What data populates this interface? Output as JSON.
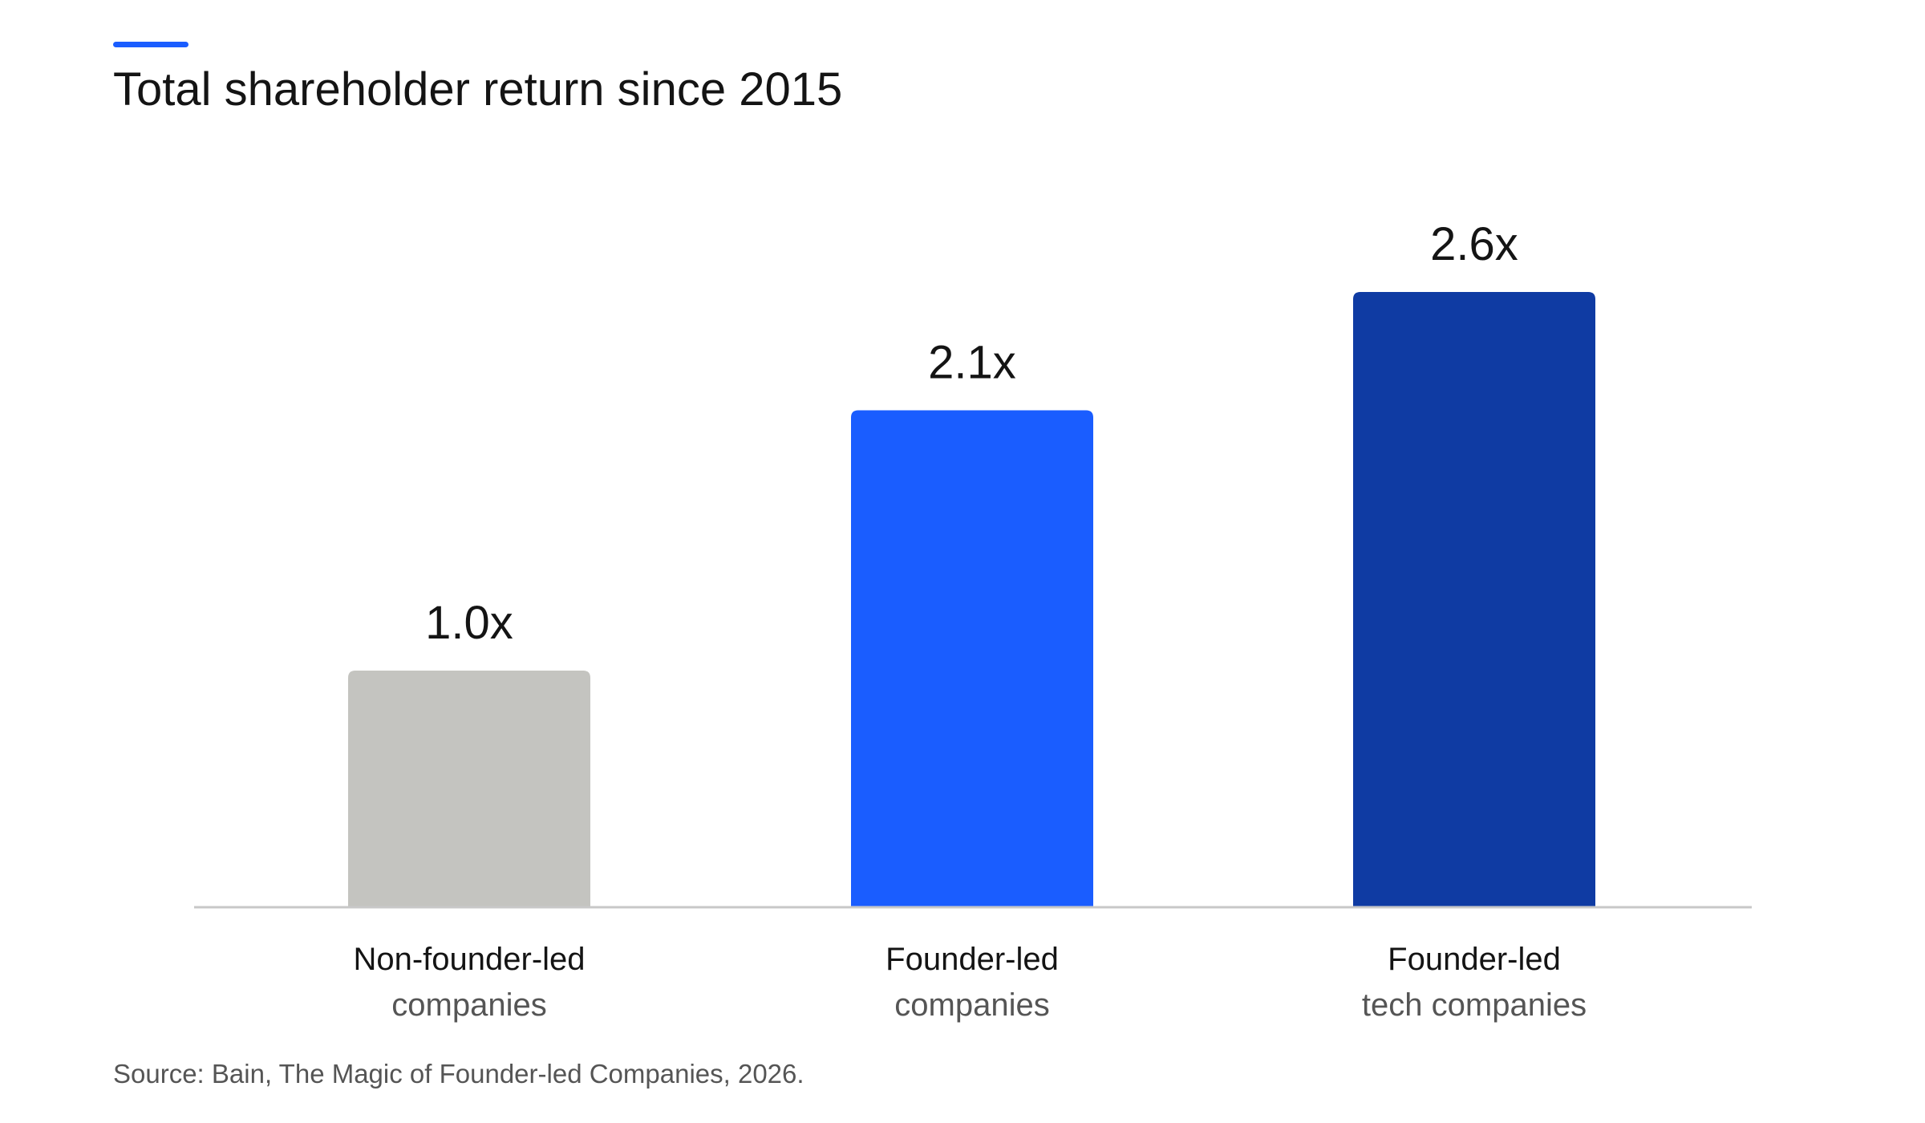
{
  "chart_data": {
    "type": "bar",
    "title": "Total shareholder return since 2015",
    "categories": [
      {
        "primary": "Non-founder-led",
        "secondary": "companies"
      },
      {
        "primary": "Founder-led",
        "secondary": "companies"
      },
      {
        "primary": "Founder-led",
        "secondary": "tech companies"
      }
    ],
    "values": [
      1.0,
      2.1,
      2.6
    ],
    "value_labels": [
      "1.0x",
      "2.1x",
      "2.6x"
    ],
    "bar_colors": [
      "#c4c4c0",
      "#1a5dff",
      "#0f3ba3"
    ],
    "ylim": [
      0,
      2.6
    ],
    "grid": false,
    "source": "Source: Bain, The Magic of Founder-led Companies, 2026."
  },
  "colors": {
    "accent": "#1a5dff",
    "axis": "#c8c8c8"
  }
}
